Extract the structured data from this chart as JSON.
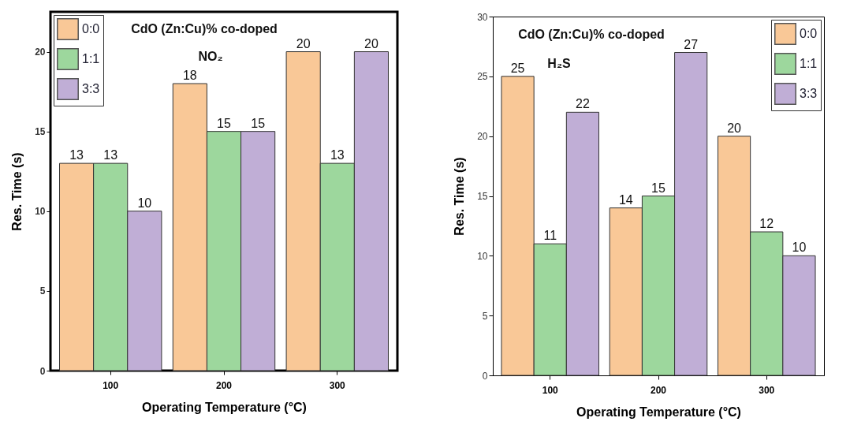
{
  "chart_data": [
    {
      "type": "bar",
      "categories": [
        "100",
        "200",
        "300"
      ],
      "xlabel": "Operating Temperature (°C)",
      "ylabel": "Res. Time (s)",
      "ylim": [
        0,
        22.5
      ],
      "yticks": [
        0,
        5,
        10,
        15,
        20
      ],
      "data_labels": true,
      "legend": "top left",
      "annotations": [
        "CdO (Zn:Cu)% co-doped",
        "NO₂"
      ],
      "series": [
        {
          "name": "0:0",
          "color": "#f9c897",
          "values": [
            13,
            18,
            20
          ]
        },
        {
          "name": "1:1",
          "color": "#9dd79d",
          "values": [
            13,
            15,
            13
          ]
        },
        {
          "name": "3:3",
          "color": "#c0aed6",
          "values": [
            10,
            15,
            20
          ]
        }
      ]
    },
    {
      "type": "bar",
      "categories": [
        "100",
        "200",
        "300"
      ],
      "xlabel": "Operating Temperature (°C)",
      "ylabel": "Res. Time (s)",
      "ylim": [
        0,
        30
      ],
      "yticks": [
        0,
        5,
        10,
        15,
        20,
        25,
        30
      ],
      "data_labels": true,
      "legend": "top right",
      "annotations": [
        "CdO (Zn:Cu)% co-doped",
        "H₂S"
      ],
      "series": [
        {
          "name": "0:0",
          "color": "#f9c897",
          "values": [
            25,
            14,
            20
          ]
        },
        {
          "name": "1:1",
          "color": "#9dd79d",
          "values": [
            11,
            15,
            12
          ]
        },
        {
          "name": "3:3",
          "color": "#c0aed6",
          "values": [
            22,
            27,
            10
          ]
        }
      ]
    }
  ]
}
